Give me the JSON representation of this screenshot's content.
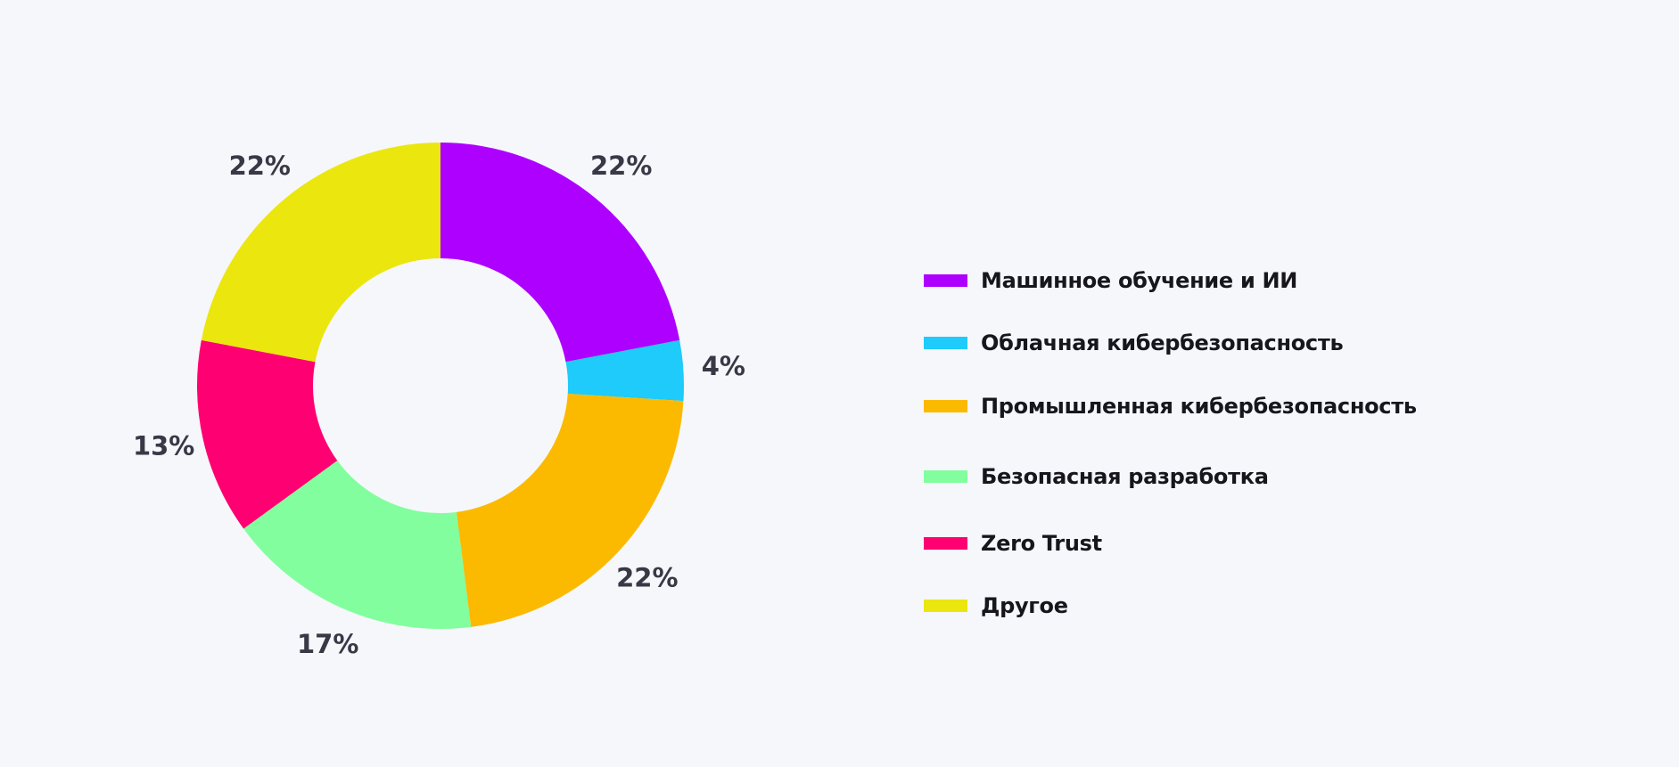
{
  "chart_data": {
    "type": "pie",
    "variant": "donut",
    "start": "top",
    "direction": "clockwise",
    "legend_placement": "right",
    "categories": [
      "Машинное обучение и ИИ",
      "Облачная кибербезопасность",
      "Промышленная кибербезопасность",
      "Безопасная разработка",
      "Zero Trust",
      "Другое"
    ],
    "values": [
      22,
      4,
      22,
      17,
      13,
      22
    ],
    "labels": [
      "22%",
      "4%",
      "22%",
      "17%",
      "13%",
      "22%"
    ],
    "colors": [
      "#ae00ff",
      "#1ecbfa",
      "#fbba00",
      "#82fe9e",
      "#ff0072",
      "#ebe60e"
    ]
  }
}
